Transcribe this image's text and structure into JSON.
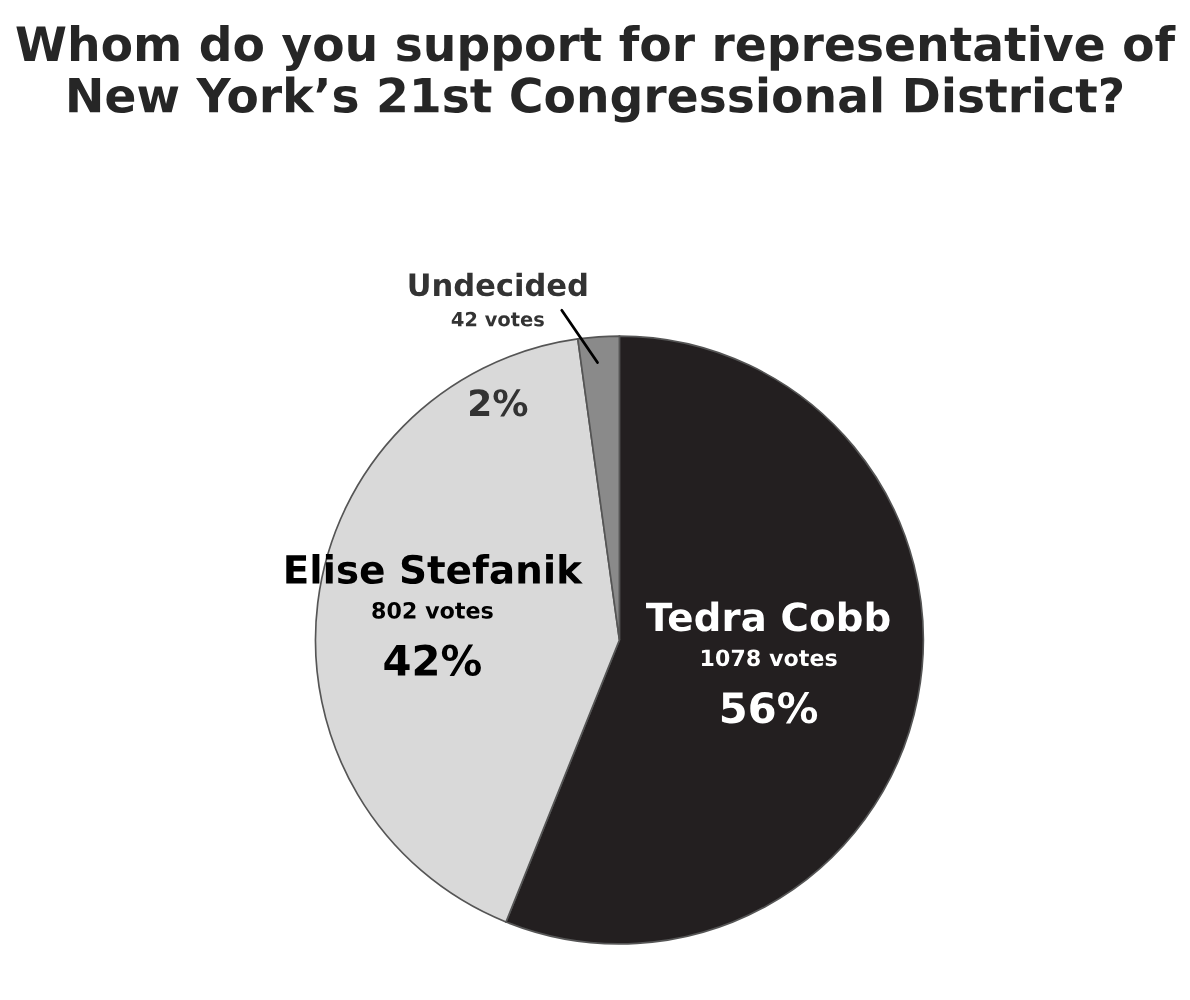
{
  "chart_data": {
    "type": "pie",
    "title": "Whom do you support for representative of\nNew York’s 21st Congressional District?",
    "categories": [
      "Tedra Cobb",
      "Elise Stefanik",
      "Undecided"
    ],
    "values": [
      1078,
      802,
      42
    ],
    "colors": [
      "#231f20",
      "#d9d9d9",
      "#8a8a8a"
    ],
    "value_labels": [
      "1078 votes\n56%",
      "802 votes\n42%",
      "42 votes\n2%"
    ]
  }
}
